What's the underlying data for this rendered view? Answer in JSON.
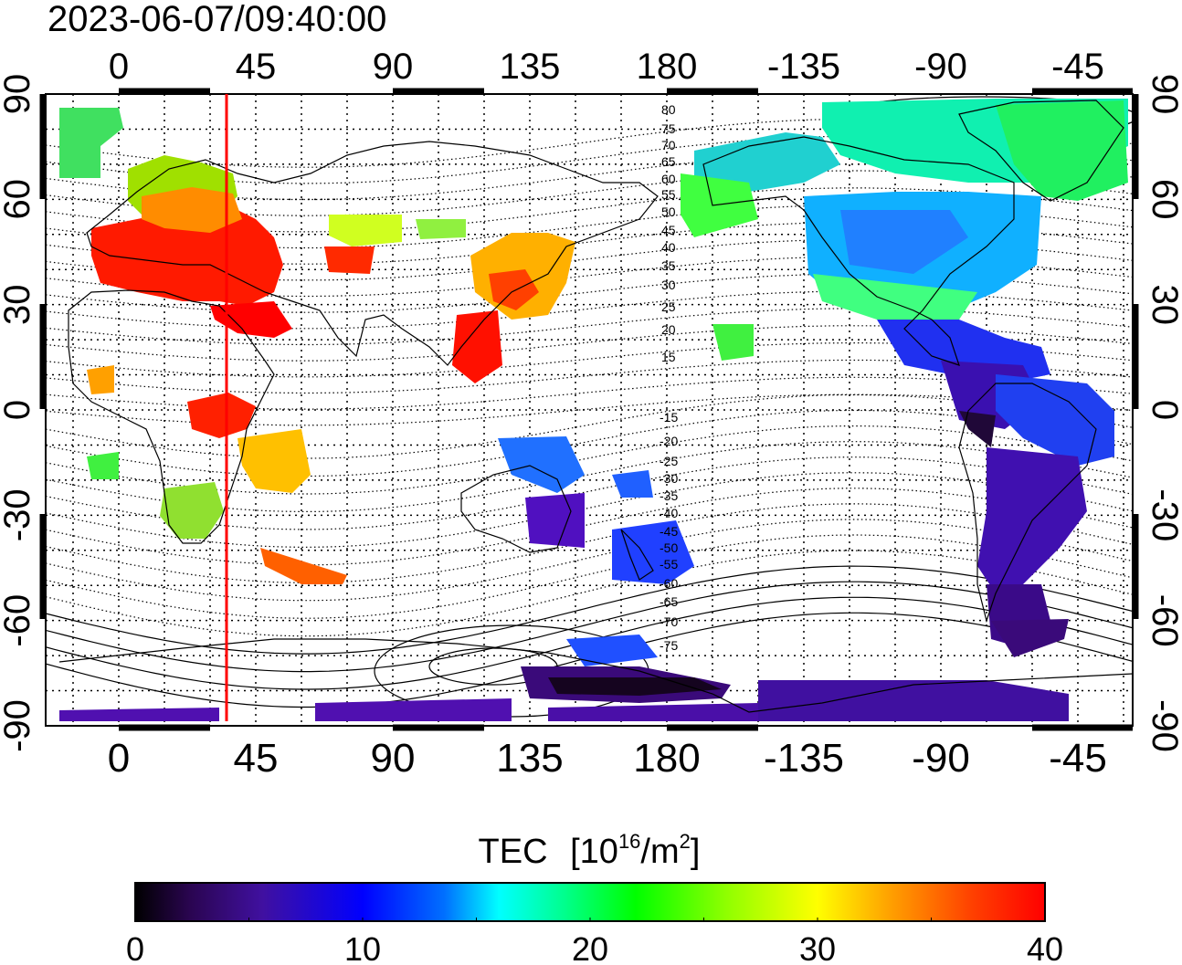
{
  "timestamp": "2023-06-07/09:40:00",
  "top_ticks": [
    "0",
    "45",
    "90",
    "135",
    "180",
    "-135",
    "-90",
    "-45"
  ],
  "bottom_ticks": [
    "0",
    "45",
    "90",
    "135",
    "180",
    "-135",
    "-90",
    "-45"
  ],
  "left_ticks": [
    "90",
    "60",
    "30",
    "0",
    "-30",
    "-60",
    "-90"
  ],
  "right_ticks": [
    "90",
    "60",
    "30",
    "0",
    "-30",
    "-60",
    "-90"
  ],
  "magnetic_lat_labels": [
    "80",
    "75",
    "70",
    "65",
    "60",
    "55",
    "50",
    "45",
    "40",
    "35",
    "30",
    "25",
    "20",
    "15",
    "-15",
    "-20",
    "-25",
    "-30",
    "-35",
    "-40",
    "-45",
    "-50",
    "-55",
    "-60",
    "-65",
    "-70",
    "-75"
  ],
  "colorbar": {
    "title": "TEC",
    "unit_base": "[10",
    "unit_exp": "16",
    "unit_mid": "/m",
    "unit_exp2": "2",
    "unit_end": "]",
    "ticks": [
      "0",
      "10",
      "20",
      "30",
      "40"
    ],
    "stops": [
      "#000000",
      "#3a0a7a",
      "#4b0fb0",
      "#0000ff",
      "#00a0ff",
      "#00ffff",
      "#00ff60",
      "#00ff00",
      "#80ff00",
      "#ffff00",
      "#ffa000",
      "#ff4000",
      "#ff0000"
    ]
  },
  "marker_longitude": 35
}
